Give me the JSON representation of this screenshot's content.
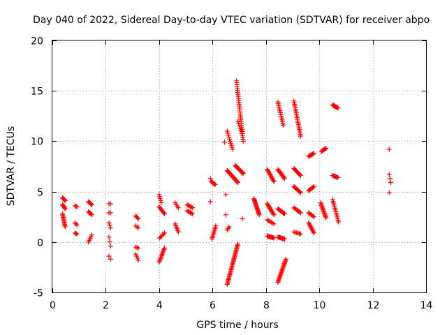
{
  "chart_data": {
    "type": "scatter",
    "title": "Day 040 of 2022, Sidereal Day-to-day VTEC variation (SDTVAR) for receiver abpo",
    "xlabel": "GPS time / hours",
    "ylabel": "SDTVAR / TECUs",
    "xlim": [
      0,
      14
    ],
    "ylim": [
      -5,
      20
    ],
    "xticks": [
      0,
      2,
      4,
      6,
      8,
      10,
      12,
      14
    ],
    "yticks": [
      -5,
      0,
      5,
      10,
      15,
      20
    ],
    "xtick_labels": [
      "0",
      "2",
      "4",
      "6",
      "8",
      "10",
      "12",
      "14"
    ],
    "ytick_labels": [
      "-5",
      "0",
      "5",
      "10",
      "15",
      "20"
    ],
    "grid": true,
    "marker": "+",
    "marker_color": "#ff0000",
    "segments": [
      {
        "x0": 0.38,
        "x1": 0.48,
        "y0": 4.4,
        "y1": 4.1,
        "n": 6
      },
      {
        "x0": 0.38,
        "x1": 0.48,
        "y0": 3.7,
        "y1": 3.3,
        "n": 6
      },
      {
        "x0": 0.38,
        "x1": 0.48,
        "y0": 2.8,
        "y1": 1.5,
        "n": 12
      },
      {
        "x0": 0.85,
        "x1": 0.92,
        "y0": 3.6,
        "y1": 3.5,
        "n": 3
      },
      {
        "x0": 0.85,
        "x1": 0.92,
        "y0": 1.9,
        "y1": 1.7,
        "n": 3
      },
      {
        "x0": 0.85,
        "x1": 0.92,
        "y0": 0.9,
        "y1": 0.8,
        "n": 3
      },
      {
        "x0": 1.35,
        "x1": 1.48,
        "y0": 4.0,
        "y1": 3.7,
        "n": 6
      },
      {
        "x0": 1.35,
        "x1": 1.48,
        "y0": 3.0,
        "y1": 2.7,
        "n": 5
      },
      {
        "x0": 1.35,
        "x1": 1.48,
        "y0": 0.0,
        "y1": 0.7,
        "n": 5
      },
      {
        "x0": 2.12,
        "x1": 2.18,
        "y0": 3.8,
        "y1": 3.8,
        "n": 2
      },
      {
        "x0": 2.12,
        "x1": 2.18,
        "y0": 2.9,
        "y1": 2.9,
        "n": 2
      },
      {
        "x0": 2.12,
        "x1": 2.18,
        "y0": 1.9,
        "y1": 1.4,
        "n": 3
      },
      {
        "x0": 2.12,
        "x1": 2.18,
        "y0": 0.5,
        "y1": -0.4,
        "n": 3
      },
      {
        "x0": 2.12,
        "x1": 2.18,
        "y0": -1.4,
        "y1": -1.7,
        "n": 2
      },
      {
        "x0": 3.12,
        "x1": 3.22,
        "y0": 2.6,
        "y1": 2.3,
        "n": 4
      },
      {
        "x0": 3.12,
        "x1": 3.22,
        "y0": 1.6,
        "y1": 1.4,
        "n": 3
      },
      {
        "x0": 3.12,
        "x1": 3.22,
        "y0": -0.5,
        "y1": -0.6,
        "n": 3
      },
      {
        "x0": 3.12,
        "x1": 3.22,
        "y0": -1.2,
        "y1": -1.8,
        "n": 4
      },
      {
        "x0": 4.0,
        "x1": 4.08,
        "y0": 4.7,
        "y1": 3.9,
        "n": 5
      },
      {
        "x0": 4.0,
        "x1": 4.2,
        "y0": 3.5,
        "y1": 2.8,
        "n": 8
      },
      {
        "x0": 4.02,
        "x1": 4.2,
        "y0": 0.4,
        "y1": 0.9,
        "n": 6
      },
      {
        "x0": 4.0,
        "x1": 4.2,
        "y0": -2.0,
        "y1": -0.6,
        "n": 12
      },
      {
        "x0": 4.6,
        "x1": 4.72,
        "y0": 3.9,
        "y1": 3.4,
        "n": 4
      },
      {
        "x0": 4.6,
        "x1": 4.72,
        "y0": 1.8,
        "y1": 1.0,
        "n": 6
      },
      {
        "x0": 5.05,
        "x1": 5.25,
        "y0": 3.7,
        "y1": 3.4,
        "n": 6
      },
      {
        "x0": 5.05,
        "x1": 5.25,
        "y0": 3.1,
        "y1": 2.8,
        "n": 6
      },
      {
        "x0": 5.92,
        "x1": 5.98,
        "y0": 6.3,
        "y1": 6.3,
        "n": 1
      },
      {
        "x0": 5.95,
        "x1": 6.1,
        "y0": 6.0,
        "y1": 5.7,
        "n": 6
      },
      {
        "x0": 5.92,
        "x1": 5.98,
        "y0": 4.0,
        "y1": 4.0,
        "n": 1
      },
      {
        "x0": 5.98,
        "x1": 6.12,
        "y0": 0.3,
        "y1": 1.6,
        "n": 10
      },
      {
        "x0": 6.5,
        "x1": 6.56,
        "y0": 4.7,
        "y1": 4.7,
        "n": 1
      },
      {
        "x0": 6.5,
        "x1": 6.56,
        "y0": 2.7,
        "y1": 2.7,
        "n": 1
      },
      {
        "x0": 6.55,
        "x1": 6.62,
        "y0": 1.2,
        "y1": 1.5,
        "n": 3
      },
      {
        "x0": 6.45,
        "x1": 6.5,
        "y0": 9.9,
        "y1": 9.9,
        "n": 1
      },
      {
        "x0": 6.55,
        "x1": 6.75,
        "y0": 11.0,
        "y1": 9.2,
        "n": 10
      },
      {
        "x0": 6.55,
        "x1": 6.95,
        "y0": 7.1,
        "y1": 5.9,
        "n": 22
      },
      {
        "x0": 6.55,
        "x1": 6.95,
        "y0": -4.2,
        "y1": -0.2,
        "n": 34
      },
      {
        "x0": 6.85,
        "x1": 7.15,
        "y0": 7.6,
        "y1": 6.8,
        "n": 16
      },
      {
        "x0": 6.9,
        "x1": 7.15,
        "y0": 16.0,
        "y1": 10.0,
        "n": 32
      },
      {
        "x0": 6.95,
        "x1": 7.1,
        "y0": 12.0,
        "y1": 10.8,
        "n": 6
      },
      {
        "x0": 7.12,
        "x1": 7.18,
        "y0": 2.3,
        "y1": 2.3,
        "n": 1
      },
      {
        "x0": 7.55,
        "x1": 7.75,
        "y0": 4.3,
        "y1": 2.7,
        "n": 18
      },
      {
        "x0": 8.05,
        "x1": 8.3,
        "y0": 7.2,
        "y1": 6.0,
        "n": 12
      },
      {
        "x0": 8.05,
        "x1": 8.3,
        "y0": 3.8,
        "y1": 2.7,
        "n": 12
      },
      {
        "x0": 8.05,
        "x1": 8.3,
        "y0": 2.2,
        "y1": 1.8,
        "n": 6
      },
      {
        "x0": 8.05,
        "x1": 8.3,
        "y0": 0.6,
        "y1": 0.4,
        "n": 10
      },
      {
        "x0": 8.45,
        "x1": 8.65,
        "y0": 13.9,
        "y1": 11.6,
        "n": 14
      },
      {
        "x0": 8.45,
        "x1": 8.7,
        "y0": 7.2,
        "y1": 6.3,
        "n": 12
      },
      {
        "x0": 8.45,
        "x1": 8.7,
        "y0": 3.3,
        "y1": 2.8,
        "n": 10
      },
      {
        "x0": 8.45,
        "x1": 8.7,
        "y0": 0.5,
        "y1": 0.3,
        "n": 10
      },
      {
        "x0": 8.45,
        "x1": 8.75,
        "y0": -4.0,
        "y1": -1.7,
        "n": 22
      },
      {
        "x0": 9.05,
        "x1": 9.3,
        "y0": 14.0,
        "y1": 10.5,
        "n": 22
      },
      {
        "x0": 9.05,
        "x1": 9.3,
        "y0": 7.3,
        "y1": 6.6,
        "n": 10
      },
      {
        "x0": 9.05,
        "x1": 9.3,
        "y0": 5.5,
        "y1": 4.9,
        "n": 10
      },
      {
        "x0": 9.05,
        "x1": 9.3,
        "y0": 3.4,
        "y1": 2.9,
        "n": 8
      },
      {
        "x0": 9.05,
        "x1": 9.3,
        "y0": 1.0,
        "y1": 0.8,
        "n": 6
      },
      {
        "x0": 9.6,
        "x1": 9.8,
        "y0": 8.5,
        "y1": 8.8,
        "n": 8
      },
      {
        "x0": 9.6,
        "x1": 9.8,
        "y0": 5.1,
        "y1": 5.5,
        "n": 8
      },
      {
        "x0": 9.6,
        "x1": 9.8,
        "y0": 2.9,
        "y1": 2.5,
        "n": 6
      },
      {
        "x0": 9.6,
        "x1": 9.8,
        "y0": 1.9,
        "y1": 0.9,
        "n": 10
      },
      {
        "x0": 10.08,
        "x1": 10.25,
        "y0": 9.0,
        "y1": 9.3,
        "n": 8
      },
      {
        "x0": 10.05,
        "x1": 10.25,
        "y0": 3.9,
        "y1": 2.4,
        "n": 14
      },
      {
        "x0": 10.5,
        "x1": 10.7,
        "y0": 13.6,
        "y1": 13.3,
        "n": 10
      },
      {
        "x0": 10.5,
        "x1": 10.7,
        "y0": 6.6,
        "y1": 6.4,
        "n": 8
      },
      {
        "x0": 10.5,
        "x1": 10.72,
        "y0": 4.2,
        "y1": 2.0,
        "n": 14
      },
      {
        "x0": 12.62,
        "x1": 12.68,
        "y0": 9.2,
        "y1": 9.2,
        "n": 1
      },
      {
        "x0": 12.62,
        "x1": 12.68,
        "y0": 6.7,
        "y1": 5.9,
        "n": 3
      },
      {
        "x0": 12.62,
        "x1": 12.68,
        "y0": 4.9,
        "y1": 4.9,
        "n": 1
      }
    ]
  }
}
